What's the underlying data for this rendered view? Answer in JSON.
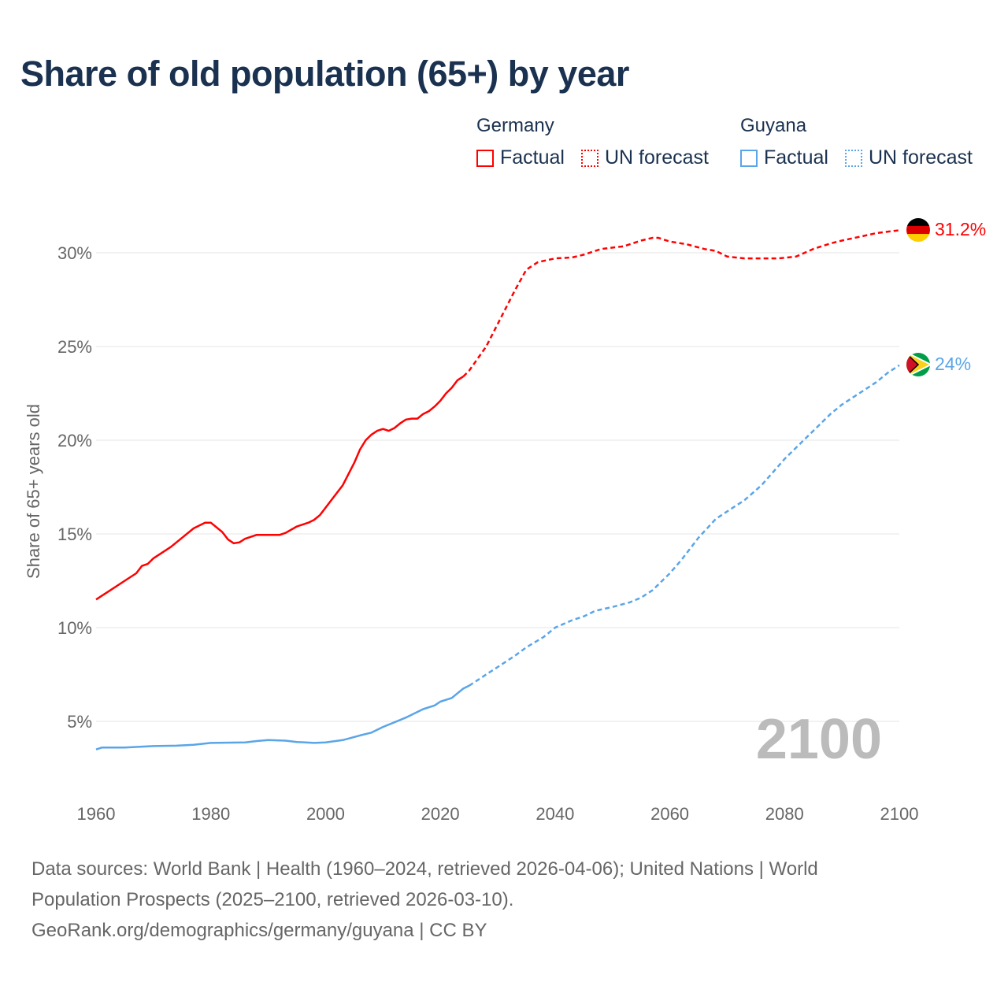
{
  "chart_data": {
    "type": "line",
    "title": "Share of old population (65+) by year",
    "ylabel": "Share of 65+ years old",
    "xlabel": "",
    "xlim": [
      1960,
      2100
    ],
    "ylim": [
      0,
      32
    ],
    "x_ticks": [
      "1960",
      "1980",
      "2000",
      "2020",
      "2040",
      "2060",
      "2080",
      "2100"
    ],
    "y_ticks": [
      {
        "v": 5,
        "label": "5%"
      },
      {
        "v": 10,
        "label": "10%"
      },
      {
        "v": 15,
        "label": "15%"
      },
      {
        "v": 20,
        "label": "20%"
      },
      {
        "v": 25,
        "label": "25%"
      },
      {
        "v": 30,
        "label": "30%"
      }
    ],
    "grid": true,
    "year_label": "2100",
    "series": [
      {
        "name": "Germany",
        "color": "#ff0000",
        "end_label": "31.2%",
        "factual": [
          [
            1960,
            11.5
          ],
          [
            1962,
            11.9
          ],
          [
            1965,
            12.5
          ],
          [
            1967,
            12.9
          ],
          [
            1968,
            13.3
          ],
          [
            1969,
            13.4
          ],
          [
            1970,
            13.7
          ],
          [
            1973,
            14.3
          ],
          [
            1975,
            14.8
          ],
          [
            1977,
            15.3
          ],
          [
            1979,
            15.6
          ],
          [
            1980,
            15.6
          ],
          [
            1982,
            15.1
          ],
          [
            1983,
            14.7
          ],
          [
            1984,
            14.5
          ],
          [
            1985,
            14.55
          ],
          [
            1986,
            14.75
          ],
          [
            1988,
            14.95
          ],
          [
            1990,
            14.95
          ],
          [
            1992,
            14.95
          ],
          [
            1993,
            15.05
          ],
          [
            1995,
            15.4
          ],
          [
            1997,
            15.6
          ],
          [
            1998,
            15.75
          ],
          [
            1999,
            16.0
          ],
          [
            2000,
            16.4
          ],
          [
            2002,
            17.2
          ],
          [
            2003,
            17.6
          ],
          [
            2005,
            18.8
          ],
          [
            2006,
            19.5
          ],
          [
            2007,
            20.0
          ],
          [
            2008,
            20.3
          ],
          [
            2009,
            20.5
          ],
          [
            2010,
            20.6
          ],
          [
            2011,
            20.5
          ],
          [
            2012,
            20.65
          ],
          [
            2013,
            20.9
          ],
          [
            2014,
            21.1
          ],
          [
            2015,
            21.15
          ],
          [
            2016,
            21.15
          ],
          [
            2017,
            21.4
          ],
          [
            2018,
            21.55
          ],
          [
            2019,
            21.8
          ],
          [
            2020,
            22.1
          ],
          [
            2021,
            22.5
          ],
          [
            2022,
            22.8
          ],
          [
            2023,
            23.2
          ],
          [
            2024,
            23.4
          ]
        ],
        "forecast": [
          [
            2024,
            23.4
          ],
          [
            2025,
            23.7
          ],
          [
            2028,
            25.0
          ],
          [
            2030,
            26.2
          ],
          [
            2033,
            28.0
          ],
          [
            2035,
            29.1
          ],
          [
            2037,
            29.5
          ],
          [
            2040,
            29.7
          ],
          [
            2043,
            29.75
          ],
          [
            2045,
            29.9
          ],
          [
            2048,
            30.2
          ],
          [
            2052,
            30.35
          ],
          [
            2055,
            30.65
          ],
          [
            2057,
            30.8
          ],
          [
            2058,
            30.8
          ],
          [
            2060,
            30.6
          ],
          [
            2063,
            30.45
          ],
          [
            2066,
            30.2
          ],
          [
            2068,
            30.1
          ],
          [
            2070,
            29.8
          ],
          [
            2073,
            29.7
          ],
          [
            2079,
            29.7
          ],
          [
            2082,
            29.8
          ],
          [
            2085,
            30.2
          ],
          [
            2088,
            30.5
          ],
          [
            2090,
            30.65
          ],
          [
            2093,
            30.85
          ],
          [
            2096,
            31.05
          ],
          [
            2100,
            31.2
          ]
        ]
      },
      {
        "name": "Guyana",
        "color": "#5aa5e8",
        "end_label": "24%",
        "factual": [
          [
            1960,
            3.5
          ],
          [
            1961,
            3.6
          ],
          [
            1965,
            3.6
          ],
          [
            1970,
            3.68
          ],
          [
            1974,
            3.7
          ],
          [
            1977,
            3.75
          ],
          [
            1980,
            3.85
          ],
          [
            1986,
            3.88
          ],
          [
            1988,
            3.95
          ],
          [
            1990,
            4.0
          ],
          [
            1993,
            3.97
          ],
          [
            1995,
            3.9
          ],
          [
            1998,
            3.85
          ],
          [
            2000,
            3.88
          ],
          [
            2003,
            4.0
          ],
          [
            2006,
            4.25
          ],
          [
            2008,
            4.4
          ],
          [
            2010,
            4.7
          ],
          [
            2012,
            4.95
          ],
          [
            2014,
            5.2
          ],
          [
            2017,
            5.65
          ],
          [
            2019,
            5.85
          ],
          [
            2020,
            6.05
          ],
          [
            2022,
            6.25
          ],
          [
            2023,
            6.5
          ],
          [
            2024,
            6.75
          ],
          [
            2025,
            6.9
          ]
        ],
        "forecast": [
          [
            2025,
            6.9
          ],
          [
            2028,
            7.5
          ],
          [
            2030,
            7.9
          ],
          [
            2033,
            8.5
          ],
          [
            2035,
            8.95
          ],
          [
            2038,
            9.5
          ],
          [
            2040,
            10.0
          ],
          [
            2043,
            10.4
          ],
          [
            2045,
            10.6
          ],
          [
            2047,
            10.9
          ],
          [
            2050,
            11.1
          ],
          [
            2053,
            11.35
          ],
          [
            2055,
            11.6
          ],
          [
            2057,
            12.0
          ],
          [
            2060,
            12.9
          ],
          [
            2062,
            13.6
          ],
          [
            2065,
            14.8
          ],
          [
            2068,
            15.8
          ],
          [
            2070,
            16.2
          ],
          [
            2073,
            16.8
          ],
          [
            2076,
            17.6
          ],
          [
            2078,
            18.3
          ],
          [
            2080,
            19.0
          ],
          [
            2083,
            19.9
          ],
          [
            2086,
            20.8
          ],
          [
            2088,
            21.4
          ],
          [
            2090,
            21.9
          ],
          [
            2093,
            22.5
          ],
          [
            2096,
            23.1
          ],
          [
            2098,
            23.6
          ],
          [
            2100,
            24.0
          ]
        ]
      }
    ]
  },
  "legend": {
    "groups": [
      {
        "name": "Germany",
        "factual": "Factual",
        "forecast": "UN forecast",
        "color": "#ff0000"
      },
      {
        "name": "Guyana",
        "factual": "Factual",
        "forecast": "UN forecast",
        "color": "#5aa5e8"
      }
    ]
  },
  "source": {
    "line1": "Data sources: World Bank | Health (1960–2024, retrieved 2026-04-06); United Nations | World",
    "line2": "Population Prospects (2025–2100, retrieved 2026-03-10).",
    "line3": "GeoRank.org/demographics/germany/guyana | CC BY"
  }
}
